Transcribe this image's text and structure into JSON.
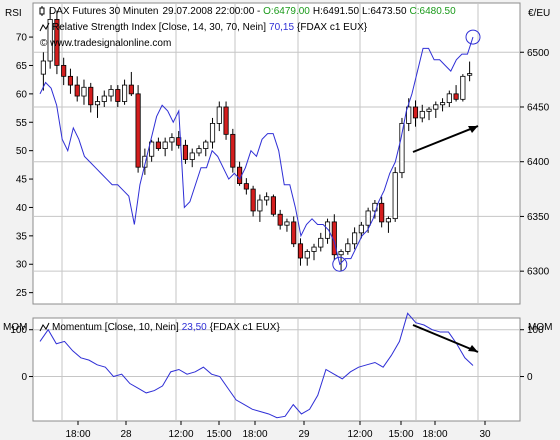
{
  "colors": {
    "background": "#ffffff",
    "frame": "#8c8c8c",
    "grid": "#c6c6c6",
    "rsi_line": "#2f2fd6",
    "momentum_line": "#2f2fd6",
    "candle_down": "#d41e1e",
    "candle_up": "#ffffff",
    "candle_outline": "#000000",
    "up_value": "#1a9a1a",
    "arrow": "#000000"
  },
  "header": {
    "title": "DAX Futures 30 Minuten",
    "datetime": "29.07.2008 22:00:00",
    "sep": " - ",
    "open": "O:6479.00",
    "high": "H:6491.50",
    "low": "L:6473.50",
    "close": "C:6480.50",
    "rsi_legend_prefix": "Relative Strength Index [Close, 14, 30, 70, Nein]",
    "rsi_legend_value": "70,15",
    "rsi_legend_suffix": "{FDAX c1 EUX}",
    "watermark": "© www.tradesignalonline.com",
    "momentum_legend_prefix": "Momentum [Close, 10, Nein]",
    "momentum_legend_value": "23,50",
    "momentum_legend_suffix": "{FDAX c1 EUX}"
  },
  "chart_data": [
    {
      "type": "line",
      "name": "rsi_panel",
      "ylabel": "RSI",
      "ylim": [
        23,
        76
      ],
      "yticks": [
        25,
        30,
        35,
        40,
        45,
        50,
        55,
        60,
        65,
        70
      ],
      "grid": true,
      "series": [
        {
          "name": "Relative Strength Index [Close, 14, 30, 70, Nein]",
          "values": [
            60,
            62,
            61,
            58,
            52,
            50,
            54,
            52,
            49,
            48,
            47,
            46,
            45,
            44,
            44,
            43,
            42,
            37,
            44,
            48,
            52,
            56,
            58,
            57,
            55,
            57,
            40,
            41,
            44,
            47,
            47,
            50,
            49,
            47,
            45,
            46,
            45,
            47,
            50,
            49,
            52,
            53,
            53,
            50,
            44,
            44,
            40,
            35,
            37,
            38,
            37,
            37,
            36,
            34,
            30,
            31,
            31,
            33,
            35,
            36,
            38,
            41,
            43,
            46,
            48,
            52,
            57,
            60,
            64,
            68,
            68,
            66,
            66,
            65,
            64,
            66,
            67,
            67,
            70
          ]
        }
      ],
      "ylim_right": [
        6270,
        6545
      ],
      "yticks_right": [
        6300,
        6350,
        6400,
        6450,
        6500
      ],
      "candles": {
        "name": "DAX Futures 30 Minuten",
        "ohlc": [
          [
            6480,
            6500,
            6465,
            6492
          ],
          [
            6492,
            6540,
            6485,
            6530
          ],
          [
            6530,
            6538,
            6480,
            6488
          ],
          [
            6488,
            6495,
            6470,
            6478
          ],
          [
            6478,
            6485,
            6462,
            6470
          ],
          [
            6470,
            6478,
            6455,
            6460
          ],
          [
            6460,
            6475,
            6452,
            6468
          ],
          [
            6468,
            6472,
            6445,
            6452
          ],
          [
            6452,
            6460,
            6440,
            6455
          ],
          [
            6455,
            6465,
            6450,
            6460
          ],
          [
            6460,
            6470,
            6455,
            6466
          ],
          [
            6466,
            6470,
            6450,
            6455
          ],
          [
            6455,
            6475,
            6452,
            6470
          ],
          [
            6470,
            6482,
            6460,
            6462
          ],
          [
            6462,
            6470,
            6390,
            6395
          ],
          [
            6395,
            6412,
            6388,
            6405
          ],
          [
            6405,
            6420,
            6400,
            6418
          ],
          [
            6418,
            6422,
            6410,
            6412
          ],
          [
            6412,
            6422,
            6405,
            6418
          ],
          [
            6418,
            6426,
            6410,
            6422
          ],
          [
            6422,
            6428,
            6412,
            6415
          ],
          [
            6415,
            6420,
            6398,
            6402
          ],
          [
            6402,
            6412,
            6395,
            6408
          ],
          [
            6408,
            6415,
            6405,
            6412
          ],
          [
            6412,
            6420,
            6405,
            6418
          ],
          [
            6418,
            6440,
            6412,
            6435
          ],
          [
            6435,
            6455,
            6428,
            6450
          ],
          [
            6450,
            6455,
            6420,
            6425
          ],
          [
            6425,
            6430,
            6390,
            6395
          ],
          [
            6395,
            6400,
            6378,
            6380
          ],
          [
            6380,
            6385,
            6370,
            6375
          ],
          [
            6375,
            6378,
            6350,
            6355
          ],
          [
            6355,
            6370,
            6345,
            6365
          ],
          [
            6365,
            6372,
            6360,
            6368
          ],
          [
            6368,
            6370,
            6350,
            6352
          ],
          [
            6352,
            6356,
            6338,
            6342
          ],
          [
            6342,
            6348,
            6336,
            6345
          ],
          [
            6345,
            6350,
            6322,
            6325
          ],
          [
            6325,
            6330,
            6305,
            6312
          ],
          [
            6312,
            6320,
            6305,
            6318
          ],
          [
            6318,
            6325,
            6310,
            6322
          ],
          [
            6322,
            6335,
            6318,
            6330
          ],
          [
            6330,
            6348,
            6325,
            6345
          ],
          [
            6345,
            6352,
            6310,
            6315
          ],
          [
            6315,
            6320,
            6300,
            6318
          ],
          [
            6318,
            6330,
            6315,
            6325
          ],
          [
            6325,
            6340,
            6320,
            6335
          ],
          [
            6335,
            6345,
            6330,
            6342
          ],
          [
            6342,
            6358,
            6335,
            6355
          ],
          [
            6355,
            6365,
            6348,
            6362
          ],
          [
            6362,
            6368,
            6340,
            6345
          ],
          [
            6345,
            6350,
            6335,
            6348
          ],
          [
            6348,
            6395,
            6345,
            6390
          ],
          [
            6390,
            6440,
            6385,
            6435
          ],
          [
            6435,
            6458,
            6428,
            6450
          ],
          [
            6450,
            6456,
            6432,
            6440
          ],
          [
            6440,
            6452,
            6436,
            6446
          ],
          [
            6446,
            6450,
            6438,
            6448
          ],
          [
            6448,
            6455,
            6440,
            6452
          ],
          [
            6452,
            6458,
            6446,
            6454
          ],
          [
            6454,
            6465,
            6450,
            6462
          ],
          [
            6462,
            6470,
            6455,
            6457
          ],
          [
            6457,
            6480,
            6455,
            6478
          ],
          [
            6479,
            6491.5,
            6473.5,
            6480.5
          ]
        ]
      },
      "annotations": [
        "circle at RSI low near 30",
        "circle at RSI high near 70",
        "arrow pointing up-right under rising price"
      ]
    },
    {
      "type": "line",
      "name": "momentum_panel",
      "ylabel": "MOM",
      "ylim": [
        -95,
        125
      ],
      "yticks": [
        0,
        100
      ],
      "grid": true,
      "series": [
        {
          "name": "Momentum [Close, 10, Nein]",
          "values": [
            75,
            100,
            70,
            75,
            55,
            40,
            35,
            25,
            20,
            0,
            5,
            -15,
            -25,
            -35,
            -30,
            -20,
            10,
            15,
            5,
            10,
            20,
            5,
            0,
            -25,
            -50,
            -60,
            -70,
            -75,
            -80,
            -88,
            -85,
            -60,
            -80,
            -70,
            -40,
            15,
            5,
            -5,
            10,
            20,
            25,
            30,
            20,
            45,
            75,
            135,
            115,
            110,
            100,
            95,
            95,
            70,
            40,
            23.5
          ]
        }
      ],
      "annotations": [
        "arrow pointing down-right above falling momentum"
      ]
    }
  ],
  "xaxis": {
    "labels": [
      "18:00",
      "28",
      "12:00",
      "15:00",
      "18:00",
      "29",
      "12:00",
      "15:00",
      "18:00",
      "30"
    ]
  }
}
